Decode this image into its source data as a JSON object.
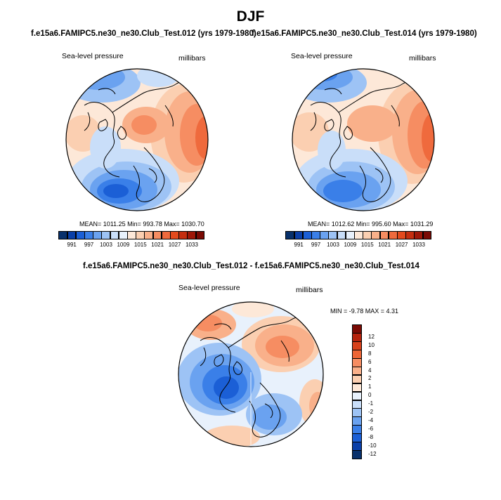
{
  "figure": {
    "title": "DJF",
    "subtitle_left": "f.e15a6.FAMIPC5.ne30_ne30.Club_Test.012 (yrs 1979-1980)",
    "subtitle_right": "f.e15a6.FAMIPC5.ne30_ne30.Club_Test.014 (yrs 1979-1980)",
    "diff_title": "f.e15a6.FAMIPC5.ne30_ne30.Club_Test.012 - f.e15a6.FAMIPC5.ne30_ne30.Club_Test.014"
  },
  "panels": {
    "left": {
      "variable": "Sea-level pressure",
      "units": "millibars",
      "stats": "MEAN= 1011.25  Min= 993.78  Max= 1030.70"
    },
    "right": {
      "variable": "Sea-level pressure",
      "units": "millibars",
      "stats": "MEAN= 1012.62  Min= 995.60  Max= 1031.29"
    },
    "diff": {
      "variable": "Sea-level pressure",
      "units": "millibars",
      "stats": "MIN =  -9.78 MAX =   4.31"
    }
  },
  "colorbar_abs": {
    "tick_labels": [
      "991",
      "997",
      "1003",
      "1009",
      "1015",
      "1021",
      "1027",
      "1033"
    ],
    "colors": [
      "#08306b",
      "#0a3fa8",
      "#1b5fd6",
      "#3a7fe8",
      "#6aa2f0",
      "#9dc3f5",
      "#c9def9",
      "#e8f1fc",
      "#fde8d8",
      "#fbcfb1",
      "#f9b08a",
      "#f68d62",
      "#ef6a3d",
      "#e34a1d",
      "#c52e0f",
      "#9e1708",
      "#7a0a04"
    ]
  },
  "colorbar_diff": {
    "tick_labels": [
      "12",
      "10",
      "8",
      "6",
      "4",
      "2",
      "1",
      "0",
      "-1",
      "-2",
      "-4",
      "-6",
      "-8",
      "-10",
      "-12"
    ],
    "colors": [
      "#7a0a04",
      "#b5220c",
      "#d7401a",
      "#ee6535",
      "#f68d62",
      "#f9b08a",
      "#fbcfb1",
      "#fde8d8",
      "#e8f1fc",
      "#c9def9",
      "#9dc3f5",
      "#6aa2f0",
      "#3a7fe8",
      "#1b5fd6",
      "#0a3fa8",
      "#08306b"
    ]
  },
  "icons": [
    "polar-map-icon"
  ]
}
